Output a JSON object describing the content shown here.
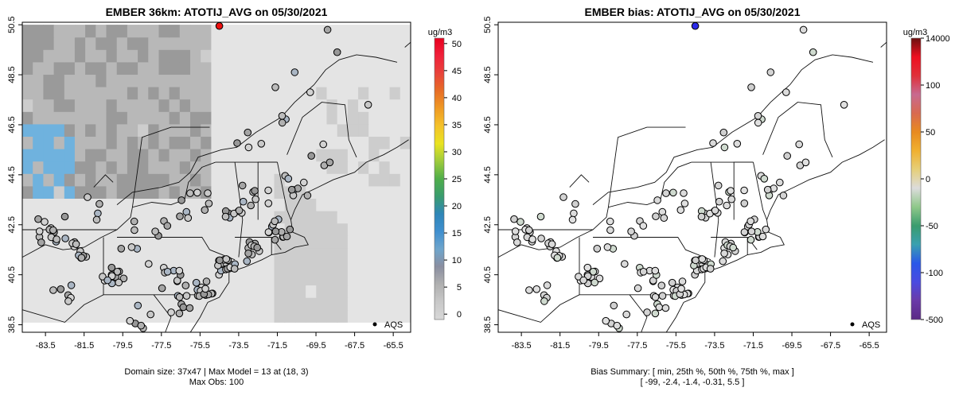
{
  "chart_data": [
    {
      "type": "heatmap",
      "title": "EMBER 36km: ATOTIJ_AVG on 05/30/2021",
      "x_ticks": [
        "-83.5",
        "-81.5",
        "-79.5",
        "-77.5",
        "-75.5",
        "-73.5",
        "-71.5",
        "-69.5",
        "-67.5",
        "-65.5"
      ],
      "y_ticks": [
        "38.5",
        "40.5",
        "42.5",
        "44.5",
        "46.5",
        "48.5",
        "50.5"
      ],
      "xlim": [
        -84.7,
        -64.6
      ],
      "ylim": [
        38.2,
        50.6
      ],
      "colorbar": {
        "unit": "ug/m3",
        "ticks": [
          "0",
          "5",
          "10",
          "15",
          "20",
          "25",
          "30",
          "35",
          "40",
          "45",
          "50"
        ],
        "range": [
          -1,
          51
        ]
      },
      "legend": "AQS",
      "footer": [
        "Domain size: 37x47 | Max Model = 13 at (18, 3)",
        "Max Obs: 100"
      ],
      "grid": "off"
    },
    {
      "type": "scatter",
      "title": "EMBER bias: ATOTIJ_AVG on 05/30/2021",
      "x_ticks": [
        "-83.5",
        "-81.5",
        "-79.5",
        "-77.5",
        "-75.5",
        "-73.5",
        "-71.5",
        "-69.5",
        "-67.5",
        "-65.5"
      ],
      "y_ticks": [
        "38.5",
        "40.5",
        "42.5",
        "44.5",
        "46.5",
        "48.5",
        "50.5"
      ],
      "xlim": [
        -84.7,
        -64.6
      ],
      "ylim": [
        38.2,
        50.6
      ],
      "colorbar": {
        "unit": "ug/m3",
        "ticks": [
          "14000",
          "100",
          "50",
          "0",
          "-50",
          "-100",
          "-500"
        ]
      },
      "legend": "AQS",
      "footer": [
        "Bias Summary: [ min, 25th %, 50th %, 75th %, max ]",
        "[ -99,   -2.4,   -1.4,   -0.31,   5.5 ]"
      ],
      "bias_summary": {
        "min": -99,
        "p25": -2.4,
        "p50": -1.4,
        "p75": -0.31,
        "max": 5.5
      },
      "grid": "off"
    }
  ]
}
